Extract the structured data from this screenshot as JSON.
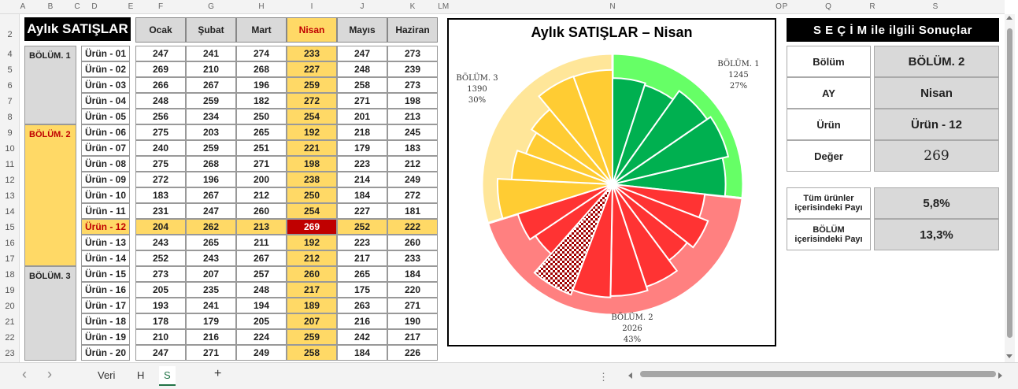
{
  "column_letters": [
    "A",
    "B",
    "C",
    "D",
    "E",
    "F",
    "G",
    "H",
    "I",
    "J",
    "K",
    "L",
    "M",
    "N",
    "O",
    "P",
    "Q",
    "R",
    "S"
  ],
  "row_numbers": [
    "2",
    "4",
    "5",
    "6",
    "7",
    "8",
    "9",
    "10",
    "11",
    "12",
    "13",
    "14",
    "15",
    "16",
    "17",
    "18",
    "19",
    "20",
    "21",
    "22",
    "23"
  ],
  "sheet_title": "Aylık SATIŞLAR",
  "months": [
    "Ocak",
    "Şubat",
    "Mart",
    "Nisan",
    "Mayıs",
    "Haziran"
  ],
  "selected_month_index": 3,
  "sections": [
    "BÖLÜM. 1",
    "BÖLÜM. 2",
    "BÖLÜM. 3"
  ],
  "products": [
    "Ürün - 01",
    "Ürün - 02",
    "Ürün - 03",
    "Ürün - 04",
    "Ürün - 05",
    "Ürün - 06",
    "Ürün - 07",
    "Ürün - 08",
    "Ürün - 09",
    "Ürün - 10",
    "Ürün - 11",
    "Ürün - 12",
    "Ürün - 13",
    "Ürün - 14",
    "Ürün - 15",
    "Ürün - 16",
    "Ürün - 17",
    "Ürün - 18",
    "Ürün - 19",
    "Ürün - 20"
  ],
  "table": [
    [
      "247",
      "241",
      "274",
      "233",
      "247",
      "273"
    ],
    [
      "269",
      "210",
      "268",
      "227",
      "248",
      "239"
    ],
    [
      "266",
      "267",
      "196",
      "259",
      "258",
      "273"
    ],
    [
      "248",
      "259",
      "182",
      "272",
      "271",
      "198"
    ],
    [
      "256",
      "234",
      "250",
      "254",
      "201",
      "213"
    ],
    [
      "275",
      "203",
      "265",
      "192",
      "218",
      "245"
    ],
    [
      "240",
      "259",
      "251",
      "221",
      "179",
      "183"
    ],
    [
      "275",
      "268",
      "271",
      "198",
      "223",
      "212"
    ],
    [
      "272",
      "196",
      "200",
      "238",
      "214",
      "249"
    ],
    [
      "183",
      "267",
      "212",
      "250",
      "184",
      "272"
    ],
    [
      "231",
      "247",
      "260",
      "254",
      "227",
      "181"
    ],
    [
      "204",
      "262",
      "213",
      "269",
      "252",
      "222"
    ],
    [
      "243",
      "265",
      "211",
      "192",
      "223",
      "260"
    ],
    [
      "252",
      "243",
      "267",
      "212",
      "217",
      "233"
    ],
    [
      "273",
      "207",
      "257",
      "260",
      "265",
      "184"
    ],
    [
      "205",
      "235",
      "248",
      "217",
      "175",
      "220"
    ],
    [
      "193",
      "241",
      "194",
      "189",
      "263",
      "271"
    ],
    [
      "178",
      "179",
      "205",
      "207",
      "216",
      "190"
    ],
    [
      "210",
      "216",
      "224",
      "259",
      "242",
      "217"
    ],
    [
      "247",
      "271",
      "249",
      "258",
      "184",
      "226"
    ]
  ],
  "chart_data": {
    "type": "pie",
    "title": "Aylık SATIŞLAR – Nisan",
    "sections": [
      {
        "name": "BÖLÜM. 1",
        "total": "1245",
        "percent": "27%",
        "value": 1245,
        "products": [
          233,
          227,
          259,
          272,
          254
        ],
        "color": "#00b050",
        "ring_color": "#66ff66"
      },
      {
        "name": "BÖLÜM. 2",
        "total": "2026",
        "percent": "43%",
        "value": 2026,
        "products": [
          192,
          221,
          198,
          238,
          250,
          254,
          269,
          192,
          212
        ],
        "color": "#ff3333",
        "ring_color": "#ff8080"
      },
      {
        "name": "BÖLÜM. 3",
        "total": "1390",
        "percent": "30%",
        "value": 1390,
        "products": [
          260,
          217,
          189,
          207,
          259,
          258
        ],
        "color": "#ffcc33",
        "ring_color": "#ffe699"
      }
    ],
    "highlighted_product": "Ürün - 12"
  },
  "results": {
    "title": "S E Ç İ M  ile ilgili Sonuçlar",
    "rows": [
      {
        "label": "Bölüm",
        "value": "BÖLÜM. 2"
      },
      {
        "label": "AY",
        "value": "Nisan"
      },
      {
        "label": "Ürün",
        "value": "Ürün - 12"
      },
      {
        "label": "Değer",
        "value": "269"
      }
    ],
    "share_all_label": "Tüm ürünler içerisindeki Payı",
    "share_all_value": "5,8%",
    "share_section_label": "BÖLÜM içerisindeki Payı",
    "share_section_value": "13,3%"
  },
  "tabs": [
    "Veri",
    "H",
    "S"
  ],
  "active_tab": "S",
  "add_sheet_symbol": "+",
  "nav_prev": "‹",
  "nav_next": "›"
}
